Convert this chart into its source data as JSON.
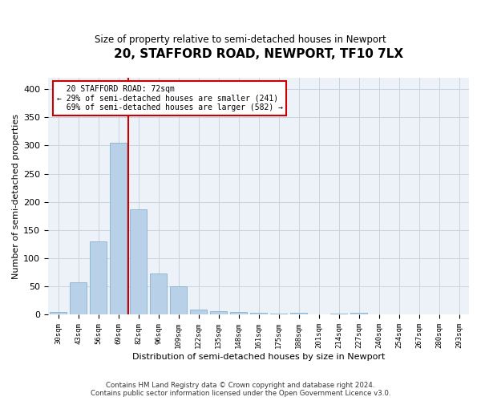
{
  "title": "20, STAFFORD ROAD, NEWPORT, TF10 7LX",
  "subtitle": "Size of property relative to semi-detached houses in Newport",
  "xlabel": "Distribution of semi-detached houses by size in Newport",
  "ylabel": "Number of semi-detached properties",
  "footer_line1": "Contains HM Land Registry data © Crown copyright and database right 2024.",
  "footer_line2": "Contains public sector information licensed under the Open Government Licence v3.0.",
  "bar_color": "#b8d0e8",
  "bar_edge_color": "#7aaac8",
  "grid_color": "#c8d4e0",
  "background_color": "#edf2f8",
  "annotation_box_color": "#cc0000",
  "vline_color": "#cc0000",
  "categories": [
    "30sqm",
    "43sqm",
    "56sqm",
    "69sqm",
    "82sqm",
    "96sqm",
    "109sqm",
    "122sqm",
    "135sqm",
    "148sqm",
    "161sqm",
    "175sqm",
    "188sqm",
    "201sqm",
    "214sqm",
    "227sqm",
    "240sqm",
    "254sqm",
    "267sqm",
    "280sqm",
    "293sqm"
  ],
  "values": [
    5,
    58,
    130,
    305,
    187,
    73,
    50,
    9,
    6,
    5,
    4,
    2,
    3,
    0,
    2,
    4,
    0,
    0,
    0,
    0,
    1
  ],
  "property_label": "20 STAFFORD ROAD: 72sqm",
  "pct_smaller": 29,
  "pct_smaller_count": 241,
  "pct_larger": 69,
  "pct_larger_count": 582,
  "vline_position": 3.5,
  "ylim": [
    0,
    420
  ],
  "yticks": [
    0,
    50,
    100,
    150,
    200,
    250,
    300,
    350,
    400
  ]
}
